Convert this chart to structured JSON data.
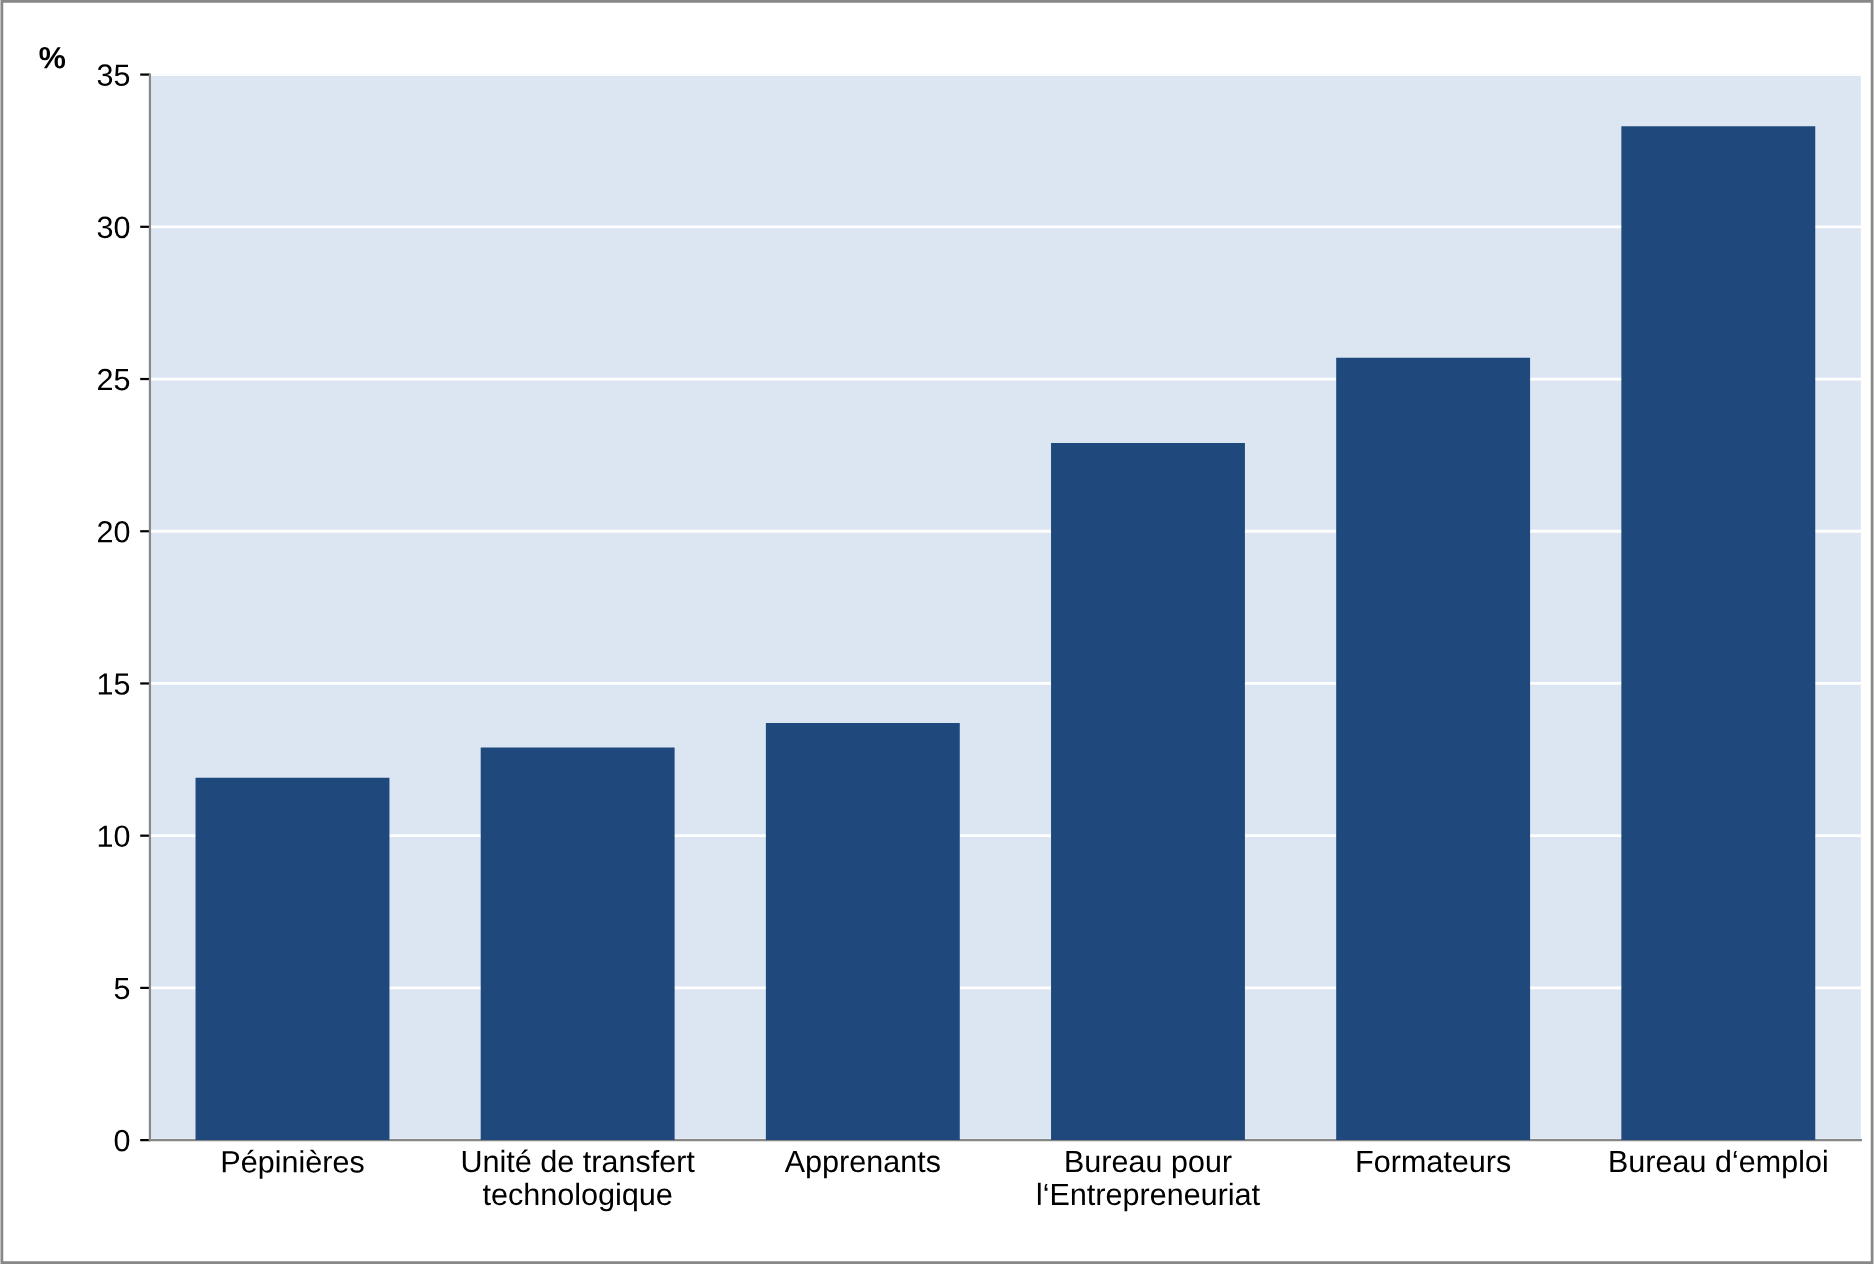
{
  "chart_data": {
    "type": "bar",
    "ylabel": "%",
    "categories": [
      "Pépinières",
      "Unité de transfert\ntechnologique",
      "Apprenants",
      "Bureau pour\nl‘Entrepreneuriat",
      "Formateurs",
      "Bureau d‘emploi"
    ],
    "values": [
      11.9,
      12.9,
      13.7,
      22.9,
      25.7,
      33.3
    ],
    "color": "#1f497d",
    "ylim": [
      0,
      35
    ],
    "yticks": [
      0,
      5,
      10,
      15,
      20,
      25,
      30,
      35
    ],
    "grid": "y"
  }
}
